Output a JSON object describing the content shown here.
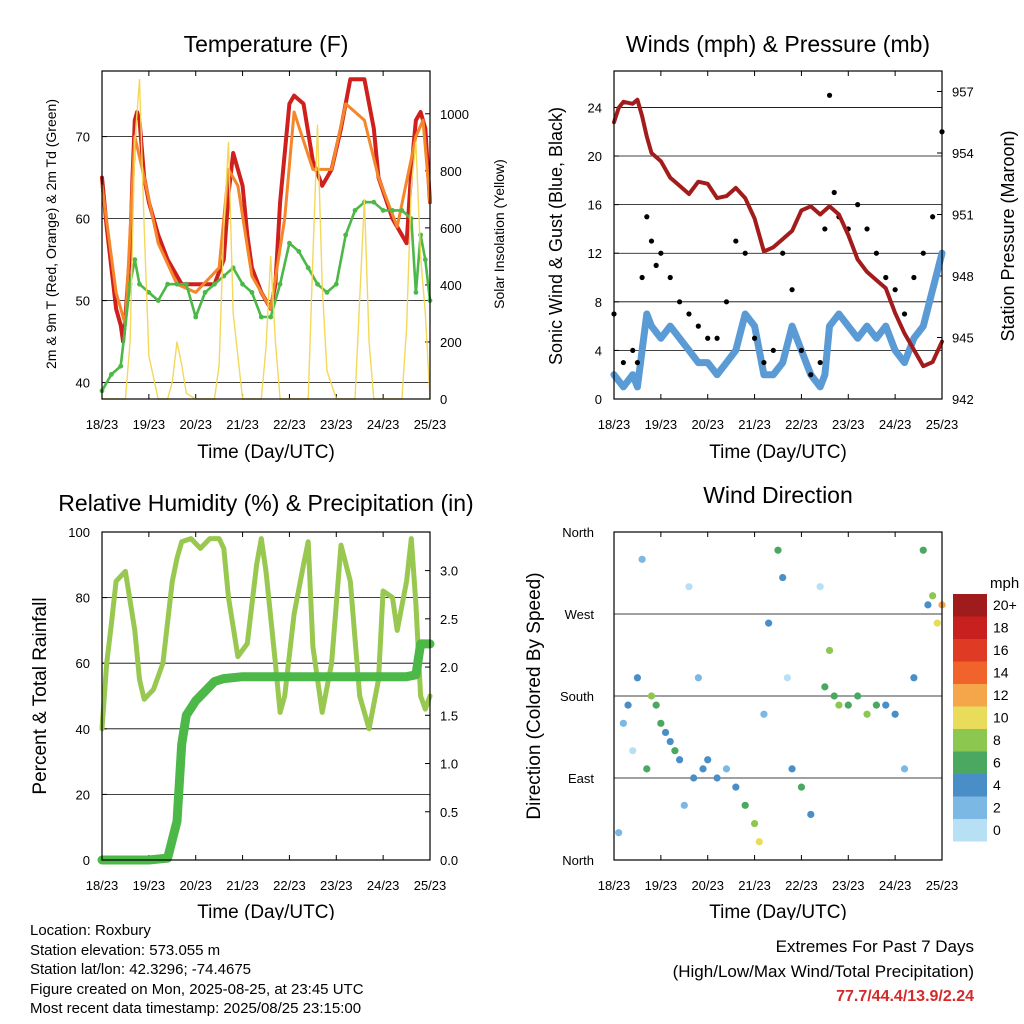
{
  "chart_data": [
    {
      "id": "temperature",
      "type": "line",
      "title": "Temperature (F)",
      "xlabel": "Time (Day/UTC)",
      "ylabel": "2m & 9m T (Red, Orange) & 2m Td (Green)",
      "ylabel_right": "Solar Insolation (Yellow)",
      "x_ticks": [
        "18/23",
        "19/23",
        "20/23",
        "21/23",
        "22/23",
        "23/23",
        "24/23",
        "25/23"
      ],
      "xlim": [
        0,
        7
      ],
      "ylim": [
        38,
        78
      ],
      "y_ticks": [
        40,
        50,
        60,
        70
      ],
      "ylim_right": [
        0,
        1150
      ],
      "y_ticks_right": [
        0,
        200,
        400,
        600,
        800,
        1000
      ],
      "grid": "horizontal",
      "colors": {
        "t2m": "#d0201e",
        "t9m": "#f5862a",
        "td": "#4cb848",
        "solar": "#f3d85a"
      },
      "series": [
        {
          "name": "2m T",
          "key": "t2m",
          "x": [
            0,
            0.1,
            0.2,
            0.3,
            0.4,
            0.45,
            0.5,
            0.6,
            0.65,
            0.7,
            0.75,
            0.8,
            0.9,
            1.0,
            1.2,
            1.4,
            1.6,
            1.7,
            1.8,
            2.0,
            2.2,
            2.4,
            2.6,
            2.7,
            2.8,
            3.0,
            3.1,
            3.2,
            3.4,
            3.6,
            3.7,
            3.8,
            4.0,
            4.1,
            4.3,
            4.5,
            4.7,
            4.8,
            4.9,
            5.1,
            5.3,
            5.6,
            5.8,
            5.9,
            6.2,
            6.5,
            6.6,
            6.7,
            6.8,
            6.9,
            7.0
          ],
          "y": [
            65,
            59,
            54,
            49,
            47,
            45,
            48,
            56,
            65,
            72,
            73,
            72,
            65,
            62,
            58,
            55,
            53,
            52,
            52,
            52,
            52,
            52,
            55,
            63,
            68,
            64,
            58,
            54,
            51,
            49,
            52,
            62,
            74,
            75,
            74,
            67,
            64,
            65,
            66,
            71,
            77,
            77,
            71,
            65,
            60,
            57,
            66,
            72,
            73,
            71,
            62
          ]
        },
        {
          "name": "9m T",
          "key": "t9m",
          "x": [
            0,
            0.3,
            0.5,
            0.7,
            0.9,
            1.2,
            1.6,
            2.0,
            2.5,
            2.7,
            2.9,
            3.2,
            3.6,
            3.9,
            4.1,
            4.5,
            4.9,
            5.2,
            5.6,
            5.9,
            6.3,
            6.7,
            6.85,
            7.0
          ],
          "y": [
            64,
            51,
            47,
            70,
            65,
            57,
            52,
            51,
            54,
            66,
            64,
            53,
            49,
            60,
            73,
            66,
            66,
            74,
            72,
            65,
            59,
            70,
            72,
            62
          ]
        },
        {
          "name": "2m Td",
          "key": "td",
          "x": [
            0,
            0.2,
            0.4,
            0.6,
            0.7,
            0.8,
            1.0,
            1.2,
            1.4,
            1.6,
            1.8,
            2.0,
            2.2,
            2.4,
            2.6,
            2.8,
            3.0,
            3.2,
            3.4,
            3.6,
            3.8,
            4.0,
            4.2,
            4.4,
            4.6,
            4.8,
            5.0,
            5.2,
            5.4,
            5.6,
            5.8,
            6.0,
            6.2,
            6.4,
            6.6,
            6.7,
            6.8,
            6.9,
            7.0
          ],
          "y": [
            39,
            41,
            42,
            52,
            55,
            52,
            51,
            50,
            52,
            52,
            52,
            48,
            51,
            52,
            53,
            54,
            52,
            51,
            48,
            48,
            52,
            57,
            56,
            54,
            52,
            51,
            52,
            58,
            61,
            62,
            62,
            61,
            61,
            61,
            60,
            51,
            58,
            55,
            50
          ]
        },
        {
          "name": "Solar Insolation",
          "key": "solar",
          "axis": "right",
          "x": [
            0,
            0.5,
            0.6,
            0.7,
            0.8,
            0.9,
            1.0,
            1.2,
            1.4,
            1.5,
            1.6,
            1.7,
            1.8,
            2.0,
            2.2,
            2.4,
            2.5,
            2.6,
            2.7,
            2.8,
            3.0,
            3.2,
            3.4,
            3.5,
            3.6,
            3.7,
            3.8,
            4.0,
            4.2,
            4.4,
            4.5,
            4.6,
            4.7,
            4.8,
            5.0,
            5.2,
            5.4,
            5.5,
            5.6,
            5.7,
            5.8,
            6.0,
            6.2,
            6.4,
            6.5,
            6.6,
            6.7,
            6.8,
            6.9,
            7.0
          ],
          "y": [
            0,
            0,
            200,
            900,
            1120,
            600,
            150,
            0,
            0,
            60,
            200,
            120,
            20,
            0,
            0,
            0,
            120,
            600,
            900,
            300,
            0,
            0,
            0,
            180,
            500,
            200,
            0,
            0,
            0,
            0,
            500,
            960,
            400,
            100,
            0,
            0,
            0,
            350,
            700,
            200,
            0,
            0,
            0,
            0,
            250,
            750,
            900,
            500,
            300,
            0
          ]
        }
      ]
    },
    {
      "id": "winds",
      "type": "scatter",
      "title": "Winds (mph) & Pressure (mb)",
      "xlabel": "Time (Day/UTC)",
      "ylabel": "Sonic Wind & Gust (Blue, Black)",
      "ylabel_right": "Station Pressure (Maroon)",
      "x_ticks": [
        "18/23",
        "19/23",
        "20/23",
        "21/23",
        "22/23",
        "23/23",
        "24/23",
        "25/23"
      ],
      "xlim": [
        0,
        7
      ],
      "ylim": [
        0,
        27
      ],
      "y_ticks": [
        0,
        4,
        8,
        12,
        16,
        20,
        24
      ],
      "ylim_right": [
        942,
        958
      ],
      "y_ticks_right": [
        942,
        945,
        948,
        951,
        954,
        957
      ],
      "grid": "horizontal",
      "colors": {
        "wind": "#5b9bd5",
        "gust": "#000000",
        "pressure": "#a31c1c"
      },
      "series": [
        {
          "name": "Sonic Wind",
          "key": "wind",
          "x": [
            0,
            0.2,
            0.4,
            0.5,
            0.6,
            0.7,
            0.8,
            1.0,
            1.2,
            1.4,
            1.6,
            1.8,
            2.0,
            2.2,
            2.4,
            2.6,
            2.8,
            3.0,
            3.2,
            3.4,
            3.6,
            3.8,
            4.0,
            4.2,
            4.4,
            4.5,
            4.6,
            4.8,
            5.0,
            5.2,
            5.4,
            5.6,
            5.8,
            6.0,
            6.2,
            6.4,
            6.6,
            6.8,
            7.0
          ],
          "y": [
            2,
            1,
            2,
            1,
            4,
            7,
            6,
            5,
            6,
            5,
            4,
            3,
            3,
            2,
            3,
            4,
            7,
            6,
            2,
            2,
            3,
            6,
            4,
            2,
            1,
            2,
            6,
            7,
            6,
            5,
            6,
            5,
            6,
            4,
            3,
            5,
            6,
            9,
            12
          ]
        },
        {
          "name": "Gust",
          "key": "gust",
          "x": [
            0,
            0.2,
            0.4,
            0.5,
            0.6,
            0.7,
            0.8,
            0.9,
            1.0,
            1.2,
            1.4,
            1.6,
            1.8,
            2.0,
            2.2,
            2.4,
            2.6,
            2.8,
            3.0,
            3.2,
            3.4,
            3.6,
            3.8,
            4.0,
            4.2,
            4.4,
            4.5,
            4.6,
            4.7,
            4.8,
            5.0,
            5.2,
            5.4,
            5.6,
            5.8,
            6.0,
            6.2,
            6.4,
            6.6,
            6.8,
            7.0
          ],
          "y": [
            7,
            3,
            4,
            3,
            10,
            15,
            13,
            11,
            12,
            10,
            8,
            7,
            6,
            5,
            5,
            8,
            13,
            12,
            5,
            3,
            4,
            12,
            9,
            4,
            2,
            3,
            14,
            25,
            17,
            15,
            14,
            16,
            14,
            12,
            10,
            9,
            7,
            10,
            12,
            15,
            22
          ]
        },
        {
          "name": "Station Pressure",
          "key": "pressure",
          "axis": "right",
          "x": [
            0,
            0.1,
            0.2,
            0.4,
            0.5,
            0.6,
            0.7,
            0.8,
            1.0,
            1.2,
            1.4,
            1.6,
            1.8,
            2.0,
            2.2,
            2.4,
            2.6,
            2.8,
            3.0,
            3.2,
            3.4,
            3.6,
            3.8,
            4.0,
            4.2,
            4.4,
            4.6,
            4.8,
            5.0,
            5.2,
            5.4,
            5.6,
            5.8,
            6.0,
            6.2,
            6.4,
            6.6,
            6.8,
            7.0
          ],
          "y": [
            955.5,
            956.2,
            956.5,
            956.4,
            956.6,
            955.8,
            954.8,
            954.0,
            953.6,
            952.8,
            952.4,
            952.0,
            952.6,
            952.5,
            951.8,
            951.9,
            952.3,
            951.8,
            950.8,
            949.2,
            949.4,
            949.8,
            950.2,
            951.2,
            951.4,
            951.0,
            951.4,
            951.0,
            950.0,
            948.8,
            948.2,
            947.8,
            947.4,
            946.2,
            945.2,
            944.4,
            943.6,
            943.8,
            944.8
          ]
        }
      ]
    },
    {
      "id": "rh",
      "type": "line",
      "title": "Relative Humidity (%) & Precipitation (in)",
      "xlabel": "Time (Day/UTC)",
      "ylabel": "Percent & Total Rainfall",
      "x_ticks": [
        "18/23",
        "19/23",
        "20/23",
        "21/23",
        "22/23",
        "23/23",
        "24/23",
        "25/23"
      ],
      "xlim": [
        0,
        7
      ],
      "ylim": [
        0,
        100
      ],
      "y_ticks": [
        0,
        20,
        40,
        60,
        80,
        100
      ],
      "ylim_right": [
        0,
        3.4
      ],
      "y_ticks_right": [
        "0.0",
        "0.5",
        "1.0",
        "1.5",
        "2.0",
        "2.5",
        "3.0"
      ],
      "grid": "horizontal",
      "colors": {
        "rh": "#98c850",
        "precip": "#4cb848"
      },
      "series": [
        {
          "name": "Relative Humidity",
          "key": "rh",
          "x": [
            0,
            0.1,
            0.2,
            0.3,
            0.5,
            0.7,
            0.8,
            0.9,
            1.1,
            1.3,
            1.5,
            1.6,
            1.7,
            1.9,
            2.1,
            2.3,
            2.5,
            2.6,
            2.7,
            2.9,
            3.1,
            3.3,
            3.4,
            3.5,
            3.7,
            3.8,
            3.9,
            4.1,
            4.3,
            4.4,
            4.5,
            4.7,
            4.9,
            5.0,
            5.1,
            5.3,
            5.5,
            5.7,
            5.9,
            6.0,
            6.2,
            6.3,
            6.5,
            6.6,
            6.7,
            6.8,
            6.9,
            7.0
          ],
          "y": [
            40,
            60,
            72,
            85,
            88,
            70,
            55,
            49,
            52,
            60,
            85,
            92,
            97,
            98,
            95,
            98,
            98,
            95,
            80,
            62,
            66,
            90,
            98,
            88,
            60,
            45,
            50,
            75,
            90,
            97,
            65,
            45,
            60,
            78,
            96,
            85,
            50,
            40,
            55,
            82,
            80,
            70,
            85,
            98,
            78,
            50,
            46,
            50
          ]
        },
        {
          "name": "Total Rainfall",
          "key": "precip",
          "axis": "right",
          "x": [
            0,
            0.5,
            1.0,
            1.4,
            1.6,
            1.7,
            1.8,
            2.0,
            2.2,
            2.4,
            2.6,
            3.0,
            4.0,
            5.0,
            6.0,
            6.5,
            6.7,
            6.8,
            7.0
          ],
          "y": [
            0.0,
            0.0,
            0.0,
            0.02,
            0.4,
            1.2,
            1.5,
            1.65,
            1.75,
            1.85,
            1.88,
            1.9,
            1.9,
            1.9,
            1.9,
            1.9,
            1.92,
            2.24,
            2.24
          ]
        }
      ]
    },
    {
      "id": "direction",
      "type": "scatter",
      "title": "Wind Direction",
      "xlabel": "Time (Day/UTC)",
      "ylabel": "Direction (Colored By Speed)",
      "x_ticks": [
        "18/23",
        "19/23",
        "20/23",
        "21/23",
        "22/23",
        "23/23",
        "24/23",
        "25/23"
      ],
      "xlim": [
        0,
        7
      ],
      "y_ticks": [
        "North",
        "East",
        "South",
        "West",
        "North"
      ],
      "ylim": [
        0,
        360
      ],
      "grid": "horizontal",
      "x": [
        0.1,
        0.2,
        0.3,
        0.4,
        0.5,
        0.6,
        0.7,
        0.8,
        0.9,
        1.0,
        1.1,
        1.2,
        1.3,
        1.4,
        1.5,
        1.6,
        1.7,
        1.8,
        1.9,
        2.0,
        2.2,
        2.4,
        2.6,
        2.8,
        3.0,
        3.1,
        3.2,
        3.3,
        3.5,
        3.6,
        3.7,
        3.8,
        4.0,
        4.2,
        4.4,
        4.5,
        4.6,
        4.7,
        4.8,
        5.0,
        5.2,
        5.4,
        5.6,
        5.8,
        6.0,
        6.2,
        6.4,
        6.6,
        6.7,
        6.8,
        6.9,
        7.0
      ],
      "y": [
        30,
        150,
        170,
        120,
        200,
        330,
        100,
        180,
        170,
        150,
        140,
        130,
        120,
        110,
        60,
        300,
        90,
        200,
        100,
        110,
        90,
        100,
        80,
        60,
        40,
        20,
        160,
        260,
        340,
        310,
        200,
        100,
        80,
        50,
        300,
        190,
        230,
        180,
        170,
        170,
        180,
        160,
        170,
        170,
        160,
        100,
        200,
        340,
        280,
        290,
        260,
        280
      ],
      "speed": [
        2,
        2,
        4,
        0,
        4,
        2,
        6,
        8,
        6,
        6,
        4,
        4,
        6,
        4,
        2,
        0,
        4,
        2,
        4,
        4,
        4,
        2,
        4,
        6,
        8,
        10,
        2,
        4,
        6,
        4,
        0,
        4,
        6,
        4,
        0,
        6,
        8,
        6,
        8,
        6,
        6,
        8,
        6,
        4,
        4,
        2,
        4,
        6,
        4,
        8,
        10,
        12
      ],
      "legend": {
        "title": "mph",
        "labels": [
          "20+",
          "18",
          "16",
          "14",
          "12",
          "10",
          "8",
          "6",
          "4",
          "2",
          "0"
        ],
        "colors": [
          "#a01c1c",
          "#c8201e",
          "#de3a24",
          "#f0632a",
          "#f6a64a",
          "#e8dc5a",
          "#8cc850",
          "#4aa860",
          "#4a8ec8",
          "#7cb8e4",
          "#b8e0f4"
        ]
      }
    }
  ],
  "footer": {
    "location": "Location: Roxbury",
    "elevation": "Station elevation: 573.055 m",
    "latlon": "Station lat/lon: 42.3296; -74.4675",
    "created": "Figure created on Mon, 2025-08-25, at 23:45 UTC",
    "recent": "Most recent data timestamp: 2025/08/25 23:15:00"
  },
  "extremes": {
    "line1": "Extremes For Past 7 Days",
    "line2": "(High/Low/Max Wind/Total Precipitation)",
    "values": "77.7/44.4/13.9/2.24"
  }
}
